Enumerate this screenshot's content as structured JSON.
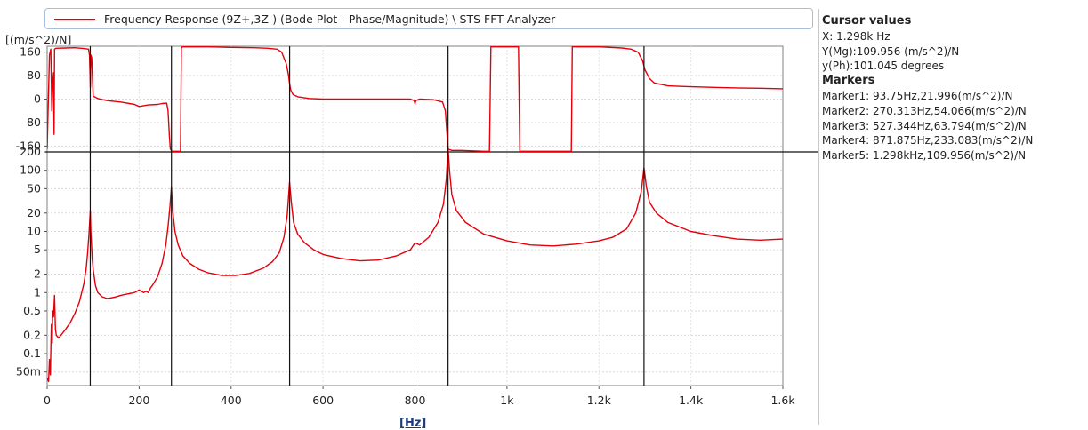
{
  "legend": {
    "series_label": "Frequency Response (9Z+,3Z-) (Bode Plot - Phase/Magnitude) \\ STS FFT Analyzer",
    "color": "#e3000b"
  },
  "unit_label": "[(m/s^2)/N]",
  "xlabel": "[Hz]",
  "cursor": {
    "title": "Cursor values",
    "x": "X: 1.298k Hz",
    "y_mag": "Y(Mg):109.956 (m/s^2)/N",
    "y_ph": "y(Ph):101.045 degrees"
  },
  "markers": {
    "title": "Markers",
    "items": [
      "Marker1: 93.75Hz,21.996(m/s^2)/N",
      "Marker2: 270.313Hz,54.066(m/s^2)/N",
      "Marker3: 527.344Hz,63.794(m/s^2)/N",
      "Marker4: 871.875Hz,233.083(m/s^2)/N",
      "Marker5: 1.298kHz,109.956(m/s^2)/N"
    ]
  },
  "chart_data": [
    {
      "type": "line",
      "name": "phase",
      "xlim": [
        0,
        1600
      ],
      "ylim": [
        -180,
        180
      ],
      "ytick_values": [
        160,
        80,
        0,
        -80,
        -160
      ],
      "ytick_labels": [
        "160",
        "80",
        "0",
        "-80",
        "-160"
      ],
      "color": "#e3000b",
      "x": [
        0,
        5,
        8,
        10,
        12,
        14,
        15,
        16,
        18,
        20,
        40,
        60,
        80,
        90,
        92,
        94,
        95,
        97,
        100,
        110,
        130,
        160,
        190,
        200,
        220,
        240,
        250,
        260,
        263,
        266,
        268,
        270,
        271,
        275,
        290,
        292,
        294,
        296,
        300,
        350,
        400,
        450,
        480,
        500,
        510,
        520,
        525,
        527,
        530,
        535,
        545,
        570,
        600,
        650,
        700,
        750,
        790,
        798,
        800,
        802,
        810,
        840,
        860,
        866,
        870,
        872,
        875,
        880,
        900,
        950,
        962,
        965,
        1025,
        1028,
        1050,
        1100,
        1140,
        1142,
        1145,
        1200,
        1250,
        1270,
        1285,
        1295,
        1300,
        1310,
        1320,
        1350,
        1400,
        1450,
        1500,
        1550,
        1600
      ],
      "y": [
        -170,
        150,
        170,
        -40,
        60,
        90,
        -120,
        170,
        172,
        173,
        174,
        175,
        172,
        170,
        150,
        40,
        150,
        140,
        10,
        2,
        -5,
        -10,
        -18,
        -25,
        -20,
        -18,
        -15,
        -14,
        -40,
        -130,
        -170,
        -175,
        -178,
        -178,
        -178,
        175,
        178,
        178,
        178,
        178,
        176,
        175,
        173,
        170,
        160,
        120,
        80,
        55,
        30,
        15,
        8,
        2,
        0,
        0,
        0,
        0,
        0,
        -5,
        -15,
        -5,
        0,
        -2,
        -10,
        -40,
        -130,
        -170,
        -172,
        -175,
        -175,
        -178,
        -178,
        178,
        178,
        -178,
        -178,
        -178,
        -178,
        178,
        178,
        178,
        174,
        170,
        160,
        130,
        100,
        70,
        55,
        45,
        42,
        40,
        38,
        37,
        35
      ]
    },
    {
      "type": "line",
      "name": "magnitude",
      "scale": "log",
      "xlim": [
        0,
        1600
      ],
      "ylim": [
        0.03,
        200
      ],
      "ytick_values": [
        200,
        100,
        50,
        20,
        10,
        5,
        2,
        1,
        0.5,
        0.2,
        0.1,
        0.05
      ],
      "ytick_labels": [
        "200",
        "100",
        "50",
        "20",
        "10",
        "5",
        "2",
        "1",
        "0.5",
        "0.2",
        "0.1",
        "50m"
      ],
      "xtick_values": [
        0,
        200,
        400,
        600,
        800,
        1000,
        1200,
        1400,
        1600
      ],
      "xtick_labels": [
        "0",
        "200",
        "400",
        "600",
        "800",
        "1k",
        "1.2k",
        "1.4k",
        "1.6k"
      ],
      "color": "#e3000b",
      "x": [
        0,
        3,
        5,
        7,
        9,
        11,
        12,
        14,
        16,
        18,
        20,
        25,
        30,
        40,
        50,
        60,
        70,
        80,
        85,
        88,
        91,
        93.75,
        95,
        98,
        100,
        105,
        110,
        120,
        130,
        140,
        150,
        160,
        175,
        190,
        200,
        210,
        215,
        220,
        225,
        230,
        240,
        250,
        258,
        263,
        267,
        270.3,
        273,
        278,
        285,
        295,
        310,
        330,
        350,
        380,
        410,
        440,
        470,
        490,
        505,
        515,
        522,
        527.3,
        531,
        536,
        545,
        560,
        580,
        600,
        640,
        680,
        720,
        760,
        790,
        800,
        810,
        830,
        850,
        862,
        868,
        871.9,
        875,
        880,
        890,
        910,
        950,
        1000,
        1050,
        1100,
        1150,
        1200,
        1230,
        1260,
        1280,
        1292,
        1298,
        1303,
        1310,
        1325,
        1350,
        1400,
        1450,
        1500,
        1550,
        1600
      ],
      "y": [
        0.04,
        0.035,
        0.08,
        0.045,
        0.3,
        0.15,
        0.5,
        0.4,
        0.9,
        0.25,
        0.2,
        0.18,
        0.2,
        0.25,
        0.32,
        0.45,
        0.7,
        1.4,
        2.5,
        4.5,
        9,
        21.996,
        10,
        3.5,
        2.4,
        1.3,
        1.0,
        0.85,
        0.8,
        0.82,
        0.85,
        0.9,
        0.95,
        1.0,
        1.1,
        1.0,
        1.05,
        1.0,
        1.2,
        1.35,
        1.8,
        3,
        6,
        12,
        25,
        54.066,
        22,
        10,
        6,
        4,
        3,
        2.4,
        2.1,
        1.9,
        1.9,
        2.05,
        2.5,
        3.2,
        4.5,
        8,
        18,
        63.794,
        30,
        14,
        9,
        6.5,
        5,
        4.2,
        3.6,
        3.3,
        3.4,
        4.0,
        5.0,
        6.5,
        6.0,
        8,
        14,
        28,
        70,
        233.083,
        100,
        40,
        22,
        14,
        9,
        7,
        6,
        5.8,
        6.2,
        7,
        8,
        11,
        20,
        45,
        109.956,
        55,
        30,
        20,
        14,
        10,
        8.5,
        7.5,
        7.2,
        7.5
      ]
    }
  ],
  "marker_freqs": [
    93.75,
    270.313,
    527.344,
    871.875,
    1298
  ]
}
